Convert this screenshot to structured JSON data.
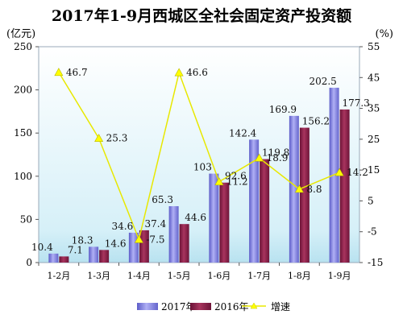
{
  "chart_data": {
    "type": "bar",
    "title": "2017年1-9月西城区全社会固定资产投资额",
    "ylabel_left": "(亿元)",
    "ylabel_right": "(%)",
    "categories": [
      "1-2月",
      "1-3月",
      "1-4月",
      "1-5月",
      "1-6月",
      "1-7月",
      "1-8月",
      "1-9月"
    ],
    "ylim_left": [
      0,
      250
    ],
    "yticks_left": [
      "0",
      "50",
      "100",
      "150",
      "200",
      "250"
    ],
    "ylim_right": [
      -15,
      55
    ],
    "yticks_right": [
      "-15",
      "-5",
      "5",
      "15",
      "25",
      "35",
      "45",
      "55"
    ],
    "legend_position": "bottom",
    "grid": false,
    "series": [
      {
        "name": "2017年",
        "type": "bar",
        "axis": "left",
        "color": "#8080e0",
        "values": [
          10.4,
          18.3,
          34.6,
          65.3,
          103,
          142.4,
          169.9,
          202.5
        ],
        "labels": [
          "10.4",
          "18.3",
          "34.6",
          "65.3",
          "103",
          "142.4",
          "169.9",
          "202.5"
        ]
      },
      {
        "name": "2016年",
        "type": "bar",
        "axis": "left",
        "color": "#8b1f4a",
        "values": [
          7.1,
          14.6,
          37.4,
          44.6,
          92.6,
          119.8,
          156.2,
          177.3
        ],
        "labels": [
          "7.1",
          "14.6",
          "37.4",
          "44.6",
          "92.6",
          "119.8",
          "156.2",
          "177.3"
        ]
      },
      {
        "name": "增速",
        "type": "line",
        "axis": "right",
        "color": "#ffff00",
        "values": [
          46.7,
          25.3,
          -7.5,
          46.6,
          11.2,
          18.9,
          8.8,
          14.2
        ],
        "labels": [
          "46.7",
          "25.3",
          "-7.5",
          "46.6",
          "11.2",
          "18.9",
          "8.8",
          "14.2"
        ]
      }
    ]
  }
}
